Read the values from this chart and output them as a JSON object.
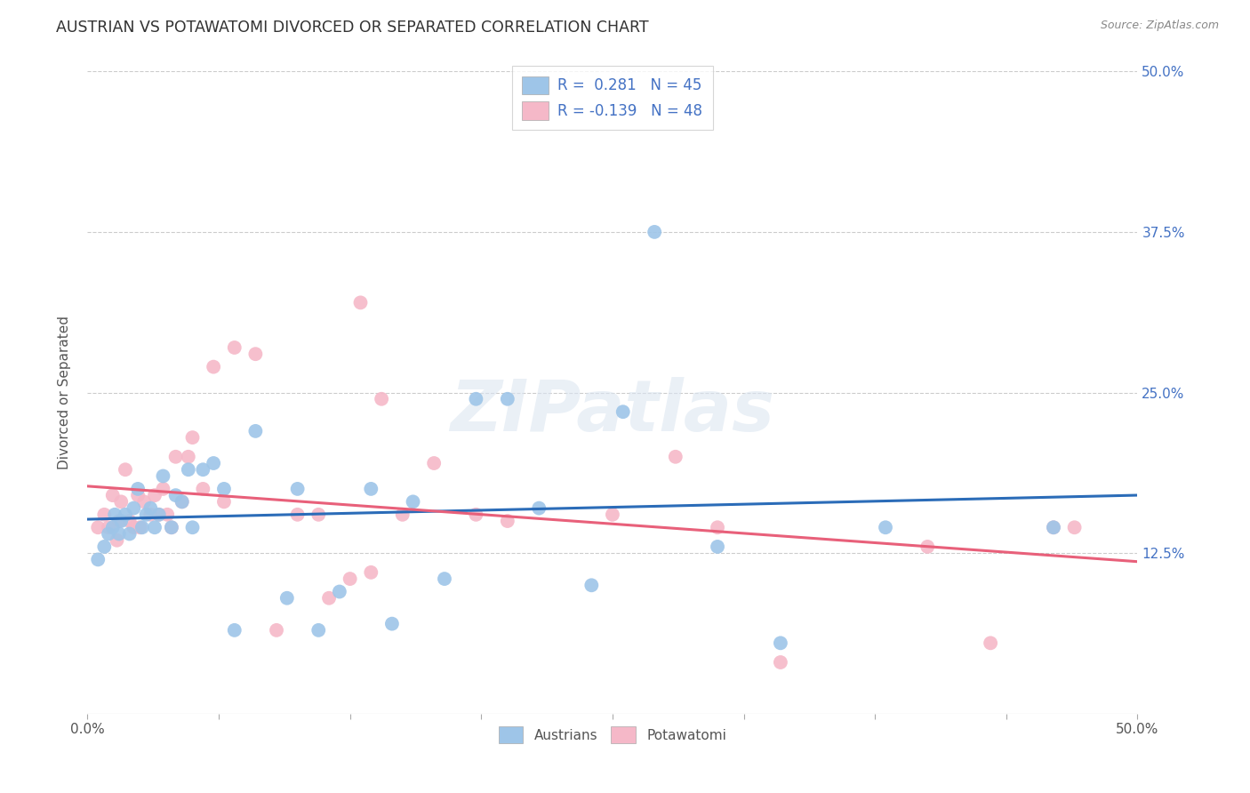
{
  "title": "AUSTRIAN VS POTAWATOMI DIVORCED OR SEPARATED CORRELATION CHART",
  "source": "Source: ZipAtlas.com",
  "ylabel": "Divorced or Separated",
  "xlim": [
    0.0,
    0.5
  ],
  "ylim": [
    0.0,
    0.5
  ],
  "ytick_labels": [
    "12.5%",
    "25.0%",
    "37.5%",
    "50.0%"
  ],
  "ytick_values": [
    0.125,
    0.25,
    0.375,
    0.5
  ],
  "background_color": "#ffffff",
  "grid_color": "#cccccc",
  "legend_R_blue": "0.281",
  "legend_N_blue": "45",
  "legend_R_pink": "-0.139",
  "legend_N_pink": "48",
  "blue_color": "#9ec5e8",
  "pink_color": "#f5b8c8",
  "blue_line_color": "#2b6cb8",
  "pink_line_color": "#e8607a",
  "austrians_x": [
    0.005,
    0.008,
    0.01,
    0.012,
    0.013,
    0.015,
    0.016,
    0.018,
    0.02,
    0.022,
    0.024,
    0.026,
    0.028,
    0.03,
    0.032,
    0.034,
    0.036,
    0.04,
    0.042,
    0.045,
    0.048,
    0.05,
    0.055,
    0.06,
    0.065,
    0.07,
    0.08,
    0.095,
    0.1,
    0.11,
    0.12,
    0.135,
    0.145,
    0.155,
    0.17,
    0.185,
    0.2,
    0.215,
    0.24,
    0.255,
    0.27,
    0.3,
    0.33,
    0.38,
    0.46
  ],
  "austrians_y": [
    0.12,
    0.13,
    0.14,
    0.145,
    0.155,
    0.14,
    0.15,
    0.155,
    0.14,
    0.16,
    0.175,
    0.145,
    0.155,
    0.16,
    0.145,
    0.155,
    0.185,
    0.145,
    0.17,
    0.165,
    0.19,
    0.145,
    0.19,
    0.195,
    0.175,
    0.065,
    0.22,
    0.09,
    0.175,
    0.065,
    0.095,
    0.175,
    0.07,
    0.165,
    0.105,
    0.245,
    0.245,
    0.16,
    0.1,
    0.235,
    0.375,
    0.13,
    0.055,
    0.145,
    0.145
  ],
  "potawatomi_x": [
    0.005,
    0.008,
    0.01,
    0.012,
    0.014,
    0.015,
    0.016,
    0.018,
    0.02,
    0.022,
    0.024,
    0.025,
    0.027,
    0.03,
    0.032,
    0.034,
    0.036,
    0.038,
    0.04,
    0.042,
    0.045,
    0.048,
    0.05,
    0.055,
    0.06,
    0.065,
    0.07,
    0.08,
    0.09,
    0.1,
    0.11,
    0.115,
    0.125,
    0.13,
    0.135,
    0.14,
    0.15,
    0.165,
    0.185,
    0.2,
    0.25,
    0.28,
    0.3,
    0.33,
    0.4,
    0.43,
    0.46,
    0.47
  ],
  "potawatomi_y": [
    0.145,
    0.155,
    0.145,
    0.17,
    0.135,
    0.15,
    0.165,
    0.19,
    0.15,
    0.145,
    0.17,
    0.145,
    0.165,
    0.155,
    0.17,
    0.155,
    0.175,
    0.155,
    0.145,
    0.2,
    0.165,
    0.2,
    0.215,
    0.175,
    0.27,
    0.165,
    0.285,
    0.28,
    0.065,
    0.155,
    0.155,
    0.09,
    0.105,
    0.32,
    0.11,
    0.245,
    0.155,
    0.195,
    0.155,
    0.15,
    0.155,
    0.2,
    0.145,
    0.04,
    0.13,
    0.055,
    0.145,
    0.145
  ]
}
